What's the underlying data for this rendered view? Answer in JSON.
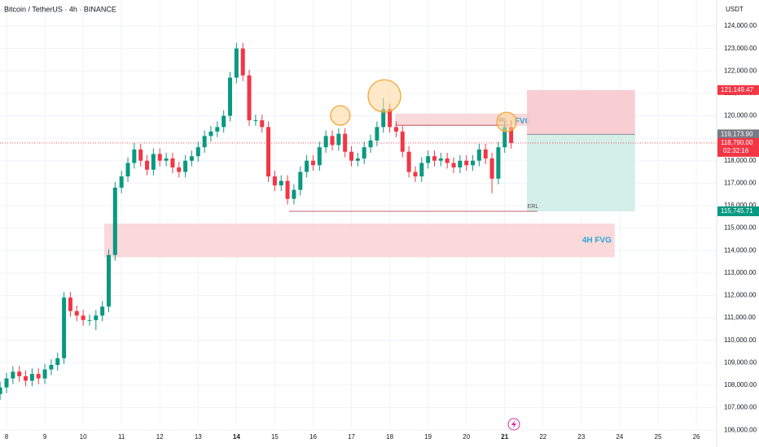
{
  "chart_data": {
    "type": "candlestick",
    "title": "Bitcoin / TetherUS · 4h · BINANCE",
    "currency": "USDT",
    "up_color": "#089981",
    "down_color": "#f23645",
    "grid": true,
    "xlim": [
      7.83,
      26.53
    ],
    "ylim": [
      106150,
      125160
    ],
    "xticks": [
      8,
      9,
      10,
      11,
      12,
      13,
      14,
      15,
      16,
      17,
      18,
      19,
      20,
      21,
      22,
      23,
      24,
      25,
      26
    ],
    "yticks": [
      {
        "value": 106000,
        "label": "106,000.00"
      },
      {
        "value": 107000,
        "label": "107,000.00"
      },
      {
        "value": 108000,
        "label": "108,000.00"
      },
      {
        "value": 109000,
        "label": "109,000.00"
      },
      {
        "value": 110000,
        "label": "110,000.00"
      },
      {
        "value": 111000,
        "label": "111,000.00"
      },
      {
        "value": 112000,
        "label": "112,000.00"
      },
      {
        "value": 113000,
        "label": "113,000.00"
      },
      {
        "value": 114000,
        "label": "114,000.00"
      },
      {
        "value": 115000,
        "label": "115,000.00"
      },
      {
        "value": 116000,
        "label": "116,000.00"
      },
      {
        "value": 117000,
        "label": "117,000.00"
      },
      {
        "value": 118000,
        "label": "118,000.00"
      },
      {
        "value": 119000,
        "label": "119,000.00"
      },
      {
        "value": 120000,
        "label": "120,000.00"
      },
      {
        "value": 121000,
        "label": "121,000.00"
      },
      {
        "value": 122000,
        "label": "122,000.00"
      },
      {
        "value": 123000,
        "label": "123,000.00"
      },
      {
        "value": 124000,
        "label": "124,000.00"
      }
    ],
    "x": [
      7.833,
      8,
      8.167,
      8.333,
      8.5,
      8.667,
      8.833,
      9,
      9.167,
      9.333,
      9.5,
      9.667,
      9.833,
      10,
      10.167,
      10.333,
      10.5,
      10.667,
      10.833,
      11,
      11.167,
      11.333,
      11.5,
      11.667,
      11.833,
      12,
      12.167,
      12.333,
      12.5,
      12.667,
      12.833,
      13,
      13.167,
      13.333,
      13.5,
      13.667,
      13.833,
      14,
      14.167,
      14.333,
      14.5,
      14.667,
      14.833,
      15,
      15.167,
      15.333,
      15.5,
      15.667,
      15.833,
      16,
      16.167,
      16.333,
      16.5,
      16.667,
      16.833,
      17,
      17.167,
      17.333,
      17.5,
      17.667,
      17.833,
      18,
      18.167,
      18.333,
      18.5,
      18.667,
      18.833,
      19,
      19.167,
      19.333,
      19.5,
      19.667,
      19.833,
      20,
      20.167,
      20.333,
      20.5,
      20.667,
      20.833,
      21,
      21.167
    ],
    "open": [
      107600,
      107900,
      108300,
      108600,
      108400,
      108200,
      108500,
      108300,
      108700,
      108900,
      109200,
      111900,
      111300,
      111100,
      110900,
      110900,
      111100,
      111500,
      113800,
      116800,
      117300,
      117900,
      118500,
      118000,
      117600,
      118300,
      118000,
      118100,
      117700,
      117500,
      118000,
      118200,
      118600,
      119100,
      119300,
      119500,
      120000,
      121700,
      123000,
      121800,
      119800,
      119800,
      119500,
      117300,
      116900,
      117100,
      116300,
      116700,
      117500,
      118000,
      117800,
      118600,
      119100,
      118700,
      119200,
      118400,
      118000,
      118100,
      118600,
      118900,
      119500,
      120300,
      119500,
      119300,
      118400,
      117500,
      117300,
      117900,
      118200,
      118000,
      118100,
      117900,
      117700,
      118000,
      117800,
      118000,
      118500,
      118100,
      117200,
      118600,
      119500
    ],
    "high": [
      108150,
      108550,
      108850,
      108850,
      108650,
      108750,
      108750,
      108950,
      109150,
      109450,
      112150,
      112150,
      111550,
      111350,
      111150,
      111350,
      111750,
      114050,
      117050,
      117550,
      118150,
      118800,
      118750,
      118250,
      118550,
      118550,
      118350,
      118350,
      117950,
      118250,
      118450,
      118850,
      119350,
      119550,
      119750,
      120250,
      121950,
      123250,
      123250,
      122050,
      120050,
      120050,
      119750,
      117550,
      117350,
      117350,
      116950,
      117750,
      118250,
      118250,
      118850,
      119350,
      119350,
      119450,
      119450,
      118650,
      118350,
      118850,
      119150,
      119750,
      120800,
      120550,
      119750,
      119550,
      118650,
      117750,
      118150,
      118450,
      118450,
      118350,
      118350,
      118150,
      118250,
      118250,
      118250,
      118750,
      118750,
      118350,
      118850,
      119750,
      119800
    ],
    "low": [
      107350,
      107650,
      108050,
      108150,
      107950,
      107950,
      108050,
      108050,
      108450,
      108650,
      108950,
      111050,
      110850,
      110650,
      110650,
      110450,
      110850,
      111250,
      113550,
      116550,
      117050,
      117650,
      117750,
      117350,
      117350,
      117750,
      117750,
      117450,
      117250,
      117250,
      117750,
      117950,
      118350,
      118850,
      119050,
      119250,
      119750,
      121450,
      121550,
      119550,
      119550,
      119250,
      117050,
      116650,
      116650,
      116050,
      116050,
      116450,
      117250,
      117550,
      117550,
      118350,
      118450,
      118450,
      118150,
      117750,
      117750,
      117850,
      118350,
      118650,
      119250,
      119250,
      119050,
      118150,
      117250,
      117050,
      117050,
      117650,
      117750,
      117750,
      117650,
      117450,
      117450,
      117550,
      117550,
      117750,
      117850,
      116550,
      116950,
      118350,
      118540
    ],
    "close": [
      107900,
      108300,
      108600,
      108400,
      108200,
      108500,
      108300,
      108700,
      108900,
      109200,
      111900,
      111300,
      111100,
      110900,
      110900,
      111100,
      111500,
      113800,
      116800,
      117300,
      117900,
      118500,
      118000,
      117600,
      118300,
      118000,
      118100,
      117700,
      117500,
      118000,
      118200,
      118600,
      119100,
      119300,
      119500,
      120000,
      121700,
      123000,
      121800,
      119800,
      119800,
      119500,
      117300,
      116900,
      117100,
      116300,
      116700,
      117500,
      118000,
      117800,
      118600,
      119100,
      118700,
      119200,
      118400,
      118000,
      118100,
      118600,
      118900,
      119500,
      120300,
      119500,
      119300,
      118400,
      117500,
      117300,
      117900,
      118200,
      118000,
      118100,
      117900,
      117700,
      118000,
      117800,
      118000,
      118500,
      118100,
      117200,
      118600,
      119500,
      118790
    ],
    "last_price_label": "118,790.00",
    "countdown": "02:32:16",
    "zones": [
      {
        "label": "4H FVG",
        "x": [
          10.55,
          23.87
        ],
        "y": [
          113700,
          115200
        ],
        "color": "#f8d2d4"
      },
      {
        "label": "FVG",
        "x": [
          18.14,
          21.64
        ],
        "y": [
          119550,
          120100
        ],
        "color": "#f8d2d4"
      }
    ],
    "lines": [
      {
        "label": "IRL",
        "x": [
          18.18,
          21.11
        ],
        "value": 119580
      },
      {
        "label": "ERL",
        "x": [
          15.37,
          21.85
        ],
        "value": 115745.71
      }
    ],
    "position": {
      "x": [
        21.58,
        24.4
      ],
      "stop": {
        "value": 121149.47,
        "label": "121,149.47"
      },
      "entry": {
        "value": 119173.9,
        "label": "119,173.90"
      },
      "target": {
        "value": 115745.71,
        "label": "115,745.71"
      }
    },
    "circles": [
      {
        "x": 16.71,
        "y": 120016
      },
      {
        "x": 17.86,
        "y": 120885
      },
      {
        "x": 21.05,
        "y": 119726
      }
    ]
  }
}
